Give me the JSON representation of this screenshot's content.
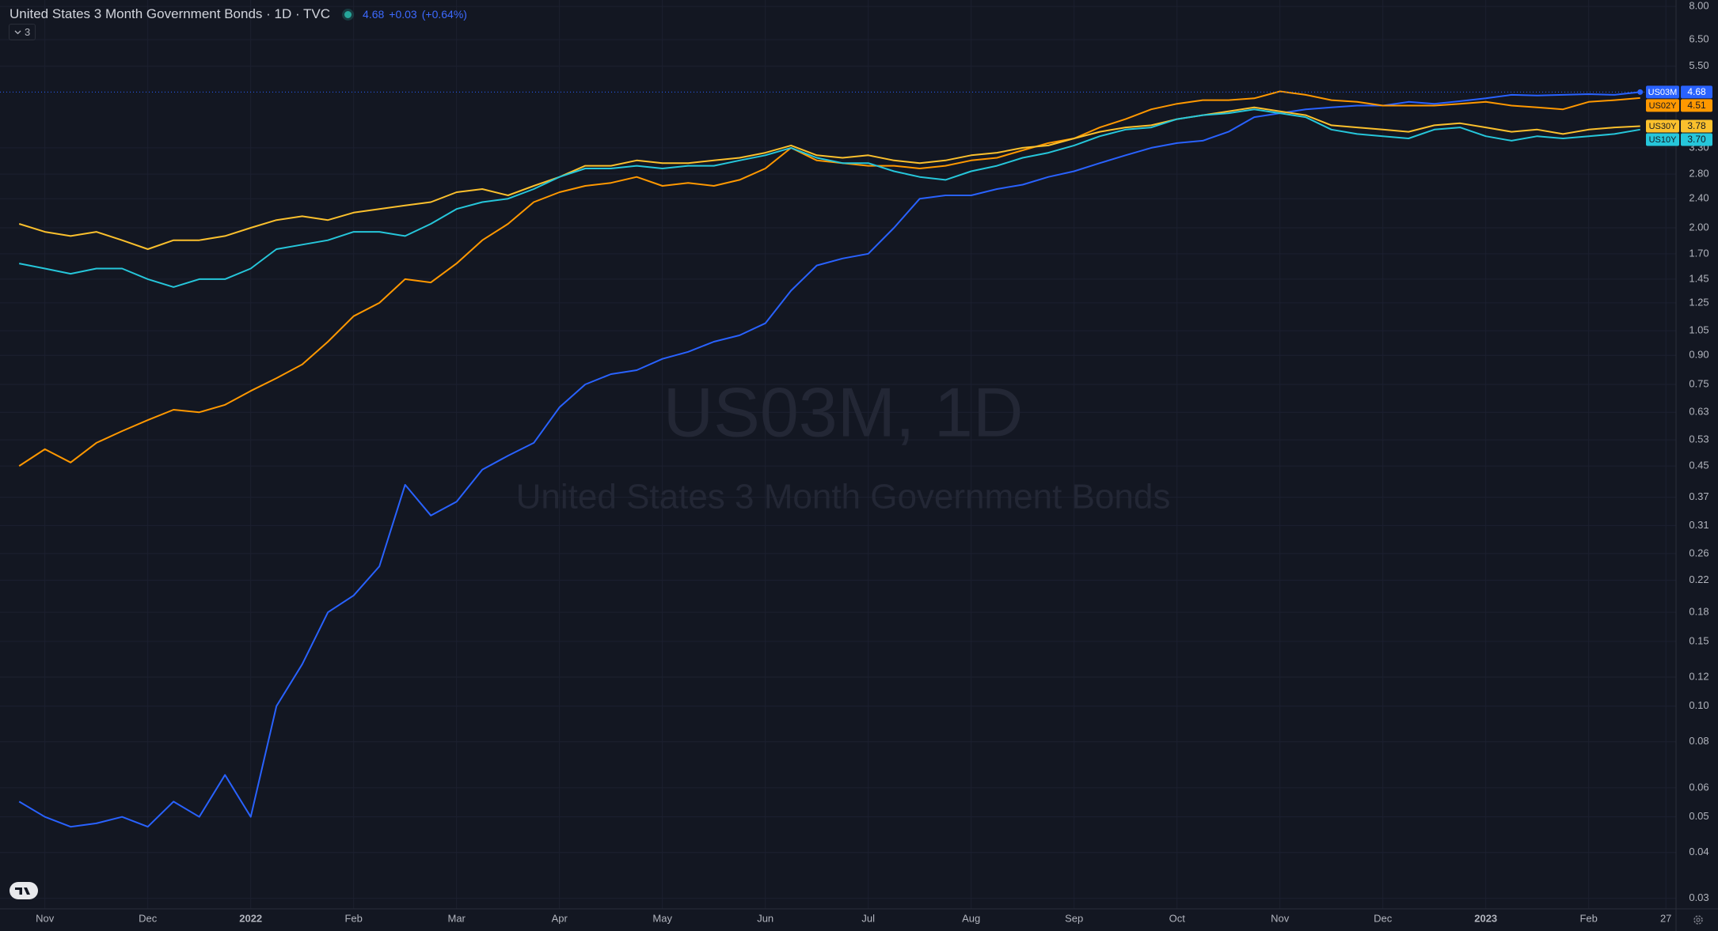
{
  "header": {
    "title": "United States 3 Month Government Bonds · 1D · TVC",
    "last": "4.68",
    "change": "+0.03",
    "change_pct": "(+0.64%)",
    "indicators": "3"
  },
  "watermark": {
    "symbol": "US03M, 1D",
    "description": "United States 3 Month Government Bonds"
  },
  "chart_data": {
    "type": "line",
    "log_scale": true,
    "grid": true,
    "categories": [
      null,
      "Nov",
      null,
      null,
      null,
      "Dec",
      null,
      null,
      null,
      "2022",
      null,
      null,
      null,
      "Feb",
      null,
      null,
      null,
      "Mar",
      null,
      null,
      null,
      "Apr",
      null,
      null,
      null,
      "May",
      null,
      null,
      null,
      "Jun",
      null,
      null,
      null,
      "Jul",
      null,
      null,
      null,
      "Aug",
      null,
      null,
      null,
      "Sep",
      null,
      null,
      null,
      "Oct",
      null,
      null,
      null,
      "Nov",
      null,
      null,
      null,
      "Dec",
      null,
      null,
      null,
      "2023",
      null,
      null,
      null,
      "Feb",
      null,
      null,
      "27"
    ],
    "ylim": [
      0.0281,
      8.33
    ],
    "yticks": [
      {
        "value": 8,
        "label": "8.00"
      },
      {
        "value": 6.5,
        "label": "6.50"
      },
      {
        "value": 5.5,
        "label": "5.50"
      },
      {
        "value": 3.3,
        "label": "3.30"
      },
      {
        "value": 2.8,
        "label": "2.80"
      },
      {
        "value": 2.4,
        "label": "2.40"
      },
      {
        "value": 2,
        "label": "2.00"
      },
      {
        "value": 1.7,
        "label": "1.70"
      },
      1.45,
      1.25,
      1.05,
      {
        "value": 0.9,
        "label": "0.90"
      },
      0.75,
      0.63,
      0.53,
      0.45,
      0.37,
      0.31,
      0.26,
      0.22,
      0.18,
      0.15,
      0.12,
      {
        "value": 0.1,
        "label": "0.10"
      },
      0.08,
      0.06,
      0.05,
      0.04,
      0.03
    ],
    "series": [
      {
        "name": "US03M",
        "color": "#2962ff",
        "text_color": "#ffffff",
        "values": [
          0.055,
          0.05,
          0.047,
          0.048,
          0.05,
          0.047,
          0.055,
          0.05,
          0.065,
          0.05,
          0.1,
          0.13,
          0.18,
          0.2,
          0.24,
          0.4,
          0.33,
          0.36,
          0.44,
          0.48,
          0.52,
          0.65,
          0.75,
          0.8,
          0.82,
          0.88,
          0.92,
          0.98,
          1.02,
          1.1,
          1.35,
          1.58,
          1.65,
          1.7,
          2.0,
          2.4,
          2.45,
          2.45,
          2.55,
          2.62,
          2.75,
          2.85,
          3.0,
          3.15,
          3.3,
          3.4,
          3.45,
          3.65,
          4.0,
          4.1,
          4.2,
          4.25,
          4.3,
          4.3,
          4.4,
          4.35,
          4.42,
          4.5,
          4.6,
          4.58,
          4.6,
          4.62,
          4.6,
          4.68,
          null
        ],
        "value_labels": [
          null,
          null,
          null,
          null,
          null,
          null,
          null,
          null,
          null,
          null,
          null,
          null,
          null,
          null,
          null,
          null,
          null,
          null,
          null,
          null,
          null,
          null,
          null,
          null,
          null,
          null,
          null,
          null,
          null,
          null,
          null,
          null,
          null,
          null,
          null,
          null,
          null,
          null,
          null,
          null,
          null,
          null,
          null,
          null,
          null,
          null,
          null,
          null,
          null,
          null,
          null,
          null,
          null,
          null,
          null,
          null,
          null,
          null,
          null,
          null,
          null,
          null,
          null,
          "4.68",
          null
        ]
      },
      {
        "name": "US02Y",
        "color": "#ff9800",
        "text_color": "#131722",
        "values": [
          0.45,
          0.5,
          0.46,
          0.52,
          0.56,
          0.6,
          0.64,
          0.63,
          0.66,
          0.72,
          0.78,
          0.85,
          0.98,
          1.15,
          1.25,
          1.45,
          1.42,
          1.6,
          1.85,
          2.05,
          2.35,
          2.5,
          2.6,
          2.65,
          2.75,
          2.6,
          2.65,
          2.6,
          2.7,
          2.9,
          3.3,
          3.05,
          3.0,
          2.95,
          2.95,
          2.9,
          2.95,
          3.05,
          3.1,
          3.25,
          3.4,
          3.5,
          3.75,
          3.95,
          4.2,
          4.35,
          4.45,
          4.45,
          4.5,
          4.7,
          4.6,
          4.45,
          4.4,
          4.3,
          4.3,
          4.3,
          4.35,
          4.4,
          4.3,
          4.25,
          4.2,
          4.4,
          4.45,
          4.51,
          null
        ],
        "value_labels": [
          null,
          null,
          null,
          null,
          null,
          null,
          null,
          null,
          null,
          null,
          null,
          null,
          null,
          null,
          null,
          null,
          null,
          null,
          null,
          null,
          null,
          null,
          null,
          null,
          null,
          null,
          null,
          null,
          null,
          null,
          null,
          null,
          null,
          null,
          null,
          null,
          null,
          null,
          null,
          null,
          null,
          null,
          null,
          null,
          null,
          null,
          null,
          null,
          null,
          null,
          null,
          null,
          null,
          null,
          null,
          null,
          null,
          null,
          null,
          null,
          null,
          null,
          null,
          "4.51",
          null
        ]
      },
      {
        "name": "US30Y",
        "color": "#fbc02d",
        "text_color": "#131722",
        "values": [
          2.05,
          1.95,
          1.9,
          1.95,
          1.85,
          1.75,
          1.85,
          1.85,
          1.9,
          2.0,
          2.1,
          2.15,
          2.1,
          2.2,
          2.25,
          2.3,
          2.35,
          2.5,
          2.55,
          2.45,
          2.6,
          2.75,
          2.95,
          2.95,
          3.05,
          3.0,
          3.0,
          3.05,
          3.1,
          3.2,
          3.35,
          3.15,
          3.1,
          3.15,
          3.05,
          3.0,
          3.05,
          3.15,
          3.2,
          3.3,
          3.35,
          3.5,
          3.65,
          3.75,
          3.8,
          3.95,
          4.05,
          4.15,
          4.25,
          4.15,
          4.05,
          3.8,
          3.75,
          3.7,
          3.65,
          3.8,
          3.85,
          3.75,
          3.65,
          3.7,
          3.6,
          3.7,
          3.75,
          3.78,
          null
        ],
        "value_labels": [
          null,
          null,
          null,
          null,
          null,
          null,
          null,
          null,
          null,
          null,
          null,
          null,
          null,
          null,
          null,
          null,
          null,
          null,
          null,
          null,
          null,
          null,
          null,
          null,
          null,
          null,
          null,
          null,
          null,
          null,
          null,
          null,
          null,
          null,
          null,
          null,
          null,
          null,
          null,
          null,
          null,
          null,
          null,
          null,
          null,
          null,
          null,
          null,
          null,
          null,
          null,
          null,
          null,
          null,
          null,
          null,
          null,
          null,
          null,
          null,
          null,
          null,
          null,
          "3.78",
          null
        ]
      },
      {
        "name": "US10Y",
        "color": "#26c6da",
        "text_color": "#131722",
        "values": [
          1.6,
          1.55,
          1.5,
          1.55,
          1.55,
          1.45,
          1.38,
          1.45,
          1.45,
          1.55,
          1.75,
          1.8,
          1.85,
          1.95,
          1.95,
          1.9,
          2.05,
          2.25,
          2.35,
          2.4,
          2.55,
          2.75,
          2.9,
          2.9,
          2.95,
          2.9,
          2.95,
          2.95,
          3.05,
          3.15,
          3.3,
          3.1,
          3.0,
          3.0,
          2.85,
          2.75,
          2.7,
          2.85,
          2.95,
          3.1,
          3.2,
          3.35,
          3.55,
          3.7,
          3.75,
          3.95,
          4.05,
          4.1,
          4.2,
          4.1,
          4.0,
          3.7,
          3.6,
          3.55,
          3.5,
          3.7,
          3.75,
          3.55,
          3.45,
          3.55,
          3.5,
          3.55,
          3.6,
          3.7,
          null
        ],
        "value_labels": [
          null,
          null,
          null,
          null,
          null,
          null,
          null,
          null,
          null,
          null,
          null,
          null,
          null,
          null,
          null,
          null,
          null,
          null,
          null,
          null,
          null,
          null,
          null,
          null,
          null,
          null,
          null,
          null,
          null,
          null,
          null,
          null,
          null,
          null,
          null,
          null,
          null,
          null,
          null,
          null,
          null,
          null,
          null,
          null,
          null,
          null,
          null,
          null,
          null,
          null,
          null,
          null,
          null,
          null,
          null,
          null,
          null,
          null,
          null,
          null,
          null,
          null,
          null,
          "3.70",
          null
        ]
      }
    ]
  }
}
